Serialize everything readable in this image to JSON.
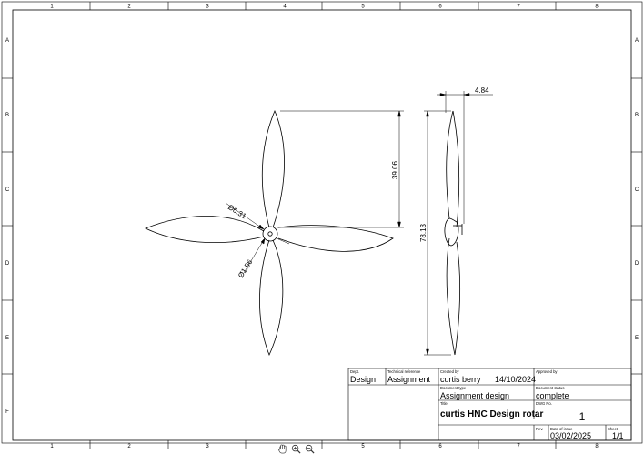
{
  "sheet": {
    "columns": [
      "1",
      "2",
      "3",
      "4",
      "5",
      "6",
      "7",
      "8"
    ],
    "rows": [
      "A",
      "B",
      "C",
      "D",
      "E",
      "F"
    ]
  },
  "dimensions": {
    "hub_diameter": "Ø1.56",
    "blade_root": "Ø6.31",
    "blade_length": "39.06",
    "overall_height": "78.13",
    "thickness": "4.84"
  },
  "title_block": {
    "dept_label": "Dept.",
    "dept_value": "Design",
    "tech_ref_label": "Technical reference",
    "tech_ref_value": "Assignment",
    "created_by_label": "Created by",
    "created_by_value": "curtis berry",
    "created_date": "14/10/2024",
    "approved_by_label": "Approved by",
    "approved_by_value": "",
    "doc_type_label": "Document type",
    "doc_type_value": "Assignment design",
    "doc_status_label": "Document status",
    "doc_status_value": "complete",
    "title_label": "Title",
    "title_value": "curtis HNC Design rotar",
    "dwg_no_label": "DWG No.",
    "dwg_no_value": "1",
    "rev_label": "Rev.",
    "rev_value": "",
    "date_issue_label": "Date of issue",
    "date_issue_value": "03/02/2025",
    "sheet_label": "Sheet",
    "sheet_value": "1/1"
  },
  "viewer_tools": [
    "hand-icon",
    "zoom-in-icon",
    "zoom-out-icon"
  ]
}
